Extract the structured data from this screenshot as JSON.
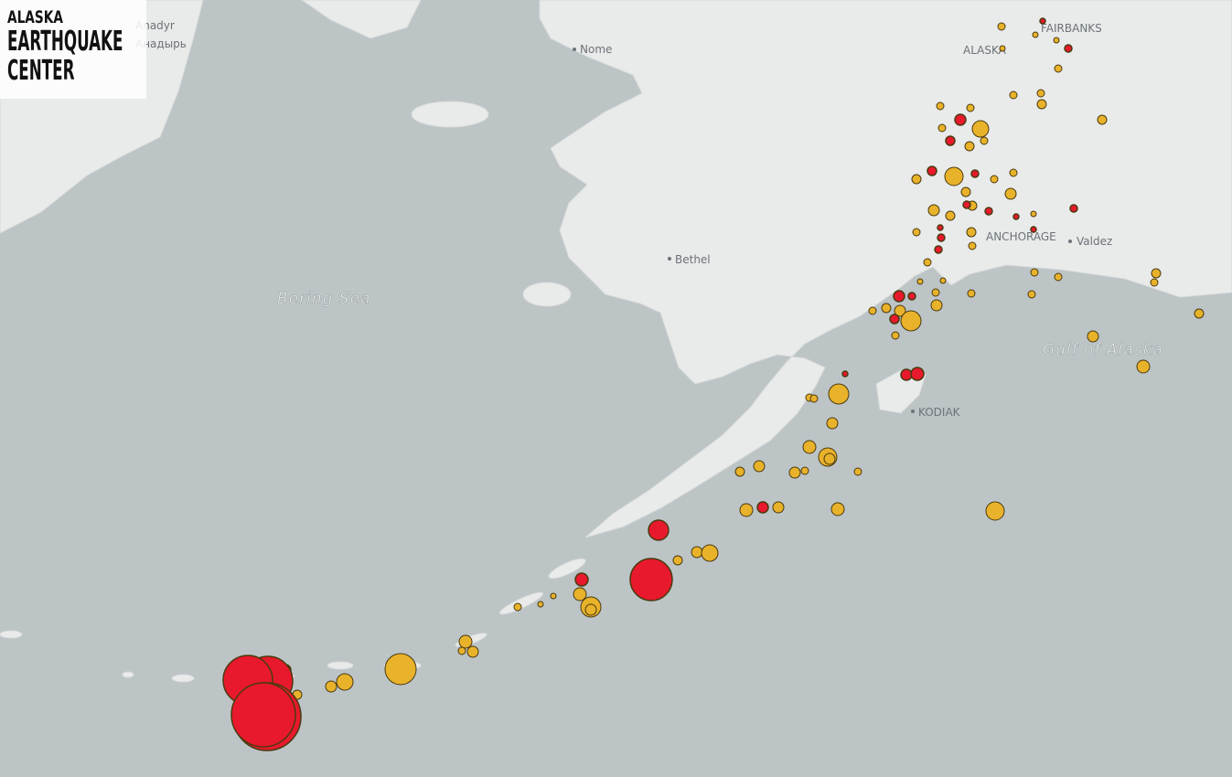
{
  "logo": {
    "line1": "ALASKA",
    "line2": "EARTHQUAKE",
    "line3": "CENTER"
  },
  "places": {
    "anadyr": "Anadyr",
    "anadyr_ru": "Анадырь",
    "nome": "Nome",
    "fairbanks": "FAIRBANKS",
    "alaska": "ALASKA",
    "bethel": "Bethel",
    "bering_sea": "Bering Sea",
    "anchorage": "ANCHORAGE",
    "valdez": "Valdez",
    "gulf": "Gulf of Alaska",
    "kodiak": "KODIAK"
  }
}
